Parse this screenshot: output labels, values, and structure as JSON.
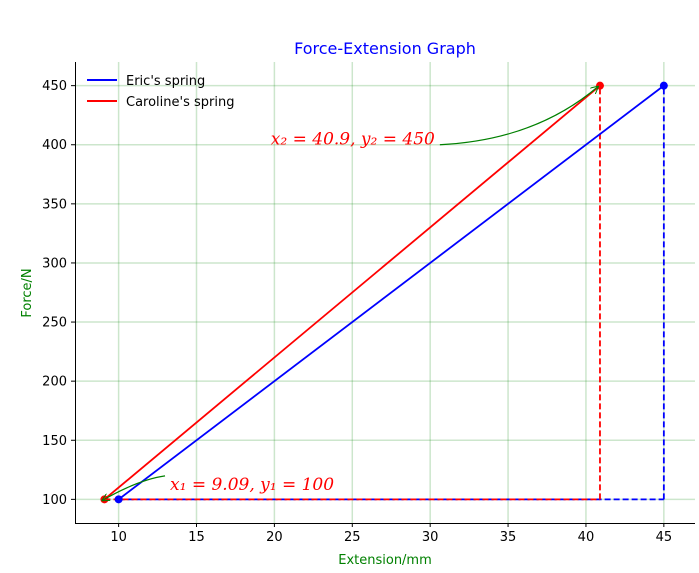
{
  "chart_data": {
    "type": "line",
    "title": "Force-Extension Graph",
    "xlabel": "Extension/mm",
    "ylabel": "Force/N",
    "xlim": [
      7.2,
      47.0
    ],
    "ylim": [
      80,
      470
    ],
    "xticks": [
      10,
      15,
      20,
      25,
      30,
      35,
      40,
      45
    ],
    "yticks": [
      100,
      150,
      200,
      250,
      300,
      350,
      400,
      450
    ],
    "grid": true,
    "legend_position": "top-left",
    "series": [
      {
        "name": "Eric's spring",
        "color": "#0000ff",
        "points": [
          [
            10,
            100
          ],
          [
            45,
            450
          ]
        ],
        "guides": [
          [
            [
              10,
              100
            ],
            [
              45,
              100
            ]
          ],
          [
            [
              45,
              100
            ],
            [
              45,
              450
            ]
          ]
        ]
      },
      {
        "name": "Caroline's spring",
        "color": "#ff0000",
        "points": [
          [
            9.09,
            100
          ],
          [
            40.9,
            450
          ]
        ],
        "guides": [
          [
            [
              9.09,
              100
            ],
            [
              40.9,
              100
            ]
          ],
          [
            [
              40.9,
              100
            ],
            [
              40.9,
              450
            ]
          ]
        ]
      }
    ],
    "annotations": [
      {
        "text": "x₂ = 40.9, y₂ = 450",
        "point": [
          40.9,
          450
        ],
        "text_at": [
          30.3,
          400
        ],
        "color": "#ff0000",
        "arrow_color": "#008000"
      },
      {
        "text": "x₁ = 9.09, y₁ = 100",
        "point": [
          9.09,
          100
        ],
        "text_at": [
          13.3,
          108
        ],
        "color": "#ff0000",
        "arrow_color": "#008000"
      }
    ],
    "colors": {
      "title": "#0000ff",
      "axis_labels": "#008000",
      "grid": "#008000"
    }
  }
}
